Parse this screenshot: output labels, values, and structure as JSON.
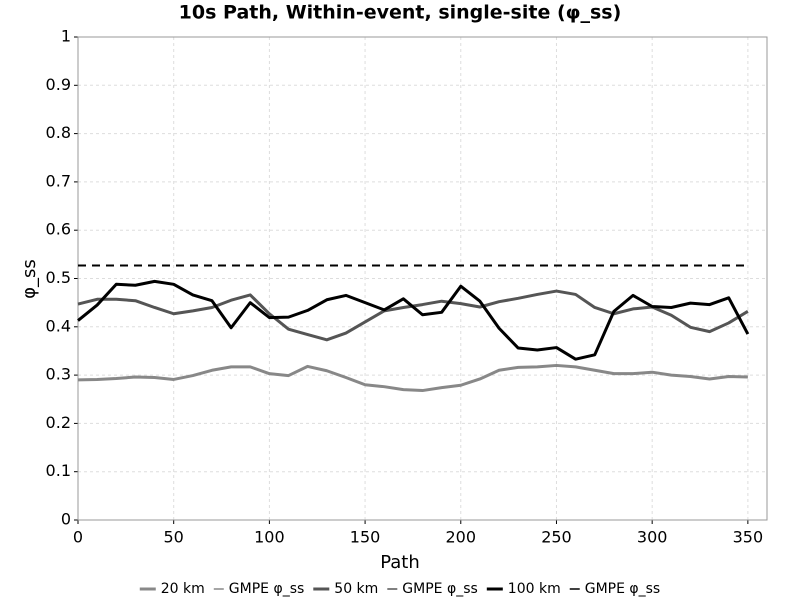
{
  "chart_data": {
    "type": "line",
    "title": "10s Path, Within-event, single-site (φ_ss)",
    "x_label": "Path",
    "y_label": "φ_ss",
    "xlim": [
      0,
      360
    ],
    "xticks": [
      0,
      50,
      100,
      150,
      200,
      250,
      300,
      350
    ],
    "ylim": [
      0,
      1
    ],
    "yticks": [
      0,
      0.1,
      0.2,
      0.3,
      0.4,
      0.5,
      0.6,
      0.7,
      0.8,
      0.9,
      1
    ],
    "grid": true,
    "legend": "bottom",
    "x": [
      0,
      10,
      20,
      30,
      40,
      50,
      60,
      70,
      80,
      90,
      100,
      110,
      120,
      130,
      140,
      150,
      160,
      170,
      180,
      190,
      200,
      210,
      220,
      230,
      240,
      250,
      260,
      270,
      280,
      290,
      300,
      310,
      320,
      330,
      340,
      350
    ],
    "series": [
      {
        "name": "20 km",
        "color": "#888888",
        "dashed": false,
        "values": [
          0.29,
          0.291,
          0.293,
          0.296,
          0.295,
          0.291,
          0.299,
          0.31,
          0.317,
          0.317,
          0.303,
          0.299,
          0.318,
          0.309,
          0.295,
          0.28,
          0.276,
          0.27,
          0.268,
          0.274,
          0.279,
          0.292,
          0.31,
          0.316,
          0.317,
          0.32,
          0.317,
          0.31,
          0.303,
          0.303,
          0.306,
          0.3,
          0.297,
          0.292,
          0.297,
          0.296
        ]
      },
      {
        "name": "GMPE φ_ss",
        "color": "#888888",
        "dashed": true,
        "x": [
          0,
          350
        ],
        "values": [
          0.527,
          0.527
        ]
      },
      {
        "name": "50 km",
        "color": "#555555",
        "dashed": false,
        "values": [
          0.447,
          0.457,
          0.457,
          0.454,
          0.44,
          0.427,
          0.433,
          0.44,
          0.455,
          0.466,
          0.427,
          0.395,
          0.384,
          0.373,
          0.387,
          0.41,
          0.433,
          0.44,
          0.446,
          0.453,
          0.448,
          0.441,
          0.452,
          0.459,
          0.467,
          0.474,
          0.467,
          0.44,
          0.427,
          0.437,
          0.441,
          0.424,
          0.399,
          0.39,
          0.408,
          0.432
        ]
      },
      {
        "name": "GMPE φ_ss",
        "color": "#555555",
        "dashed": true,
        "x": [
          0,
          350
        ],
        "values": [
          0.527,
          0.527
        ]
      },
      {
        "name": "100 km",
        "color": "#000000",
        "dashed": false,
        "values": [
          0.413,
          0.445,
          0.488,
          0.486,
          0.494,
          0.488,
          0.466,
          0.454,
          0.398,
          0.45,
          0.419,
          0.42,
          0.434,
          0.456,
          0.465,
          0.45,
          0.435,
          0.458,
          0.425,
          0.43,
          0.484,
          0.453,
          0.397,
          0.356,
          0.352,
          0.357,
          0.333,
          0.342,
          0.432,
          0.465,
          0.442,
          0.44,
          0.449,
          0.446,
          0.46,
          0.385
        ]
      },
      {
        "name": "GMPE φ_ss",
        "color": "#000000",
        "dashed": true,
        "x": [
          0,
          350
        ],
        "values": [
          0.527,
          0.527
        ]
      }
    ]
  }
}
